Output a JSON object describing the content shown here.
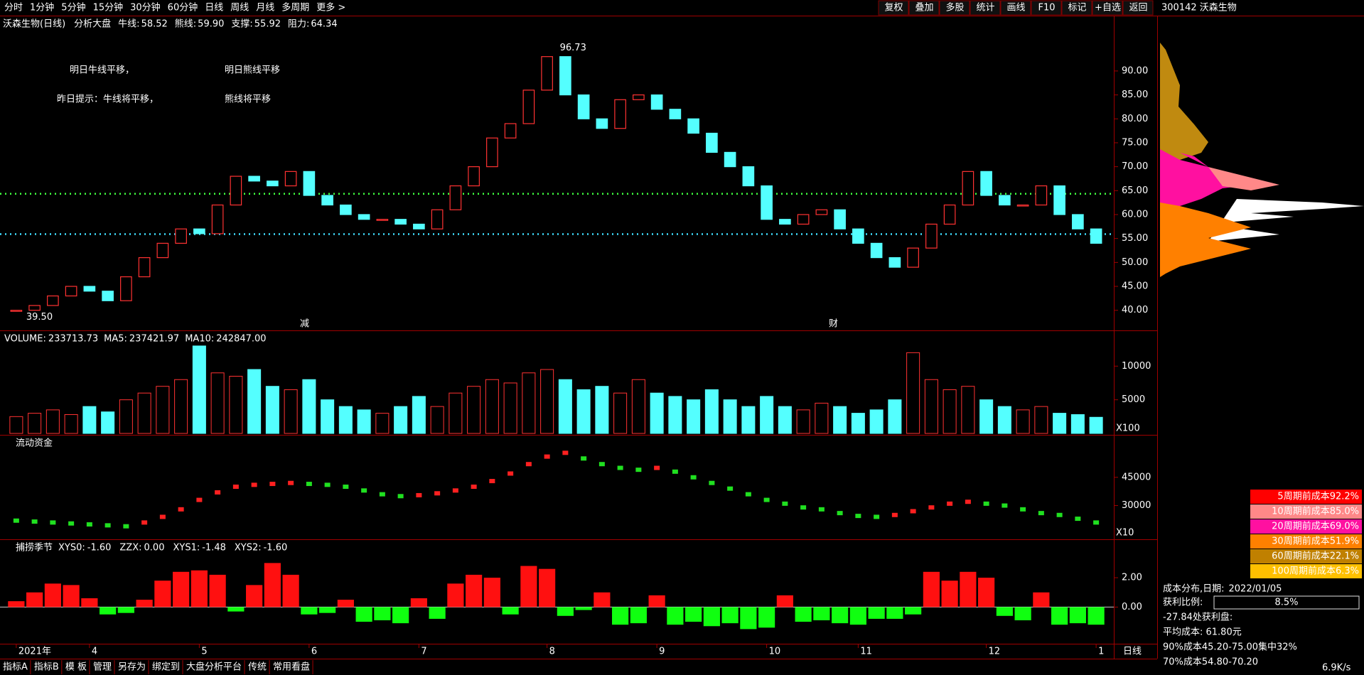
{
  "toolbar": {
    "periods": [
      "分时",
      "1分钟",
      "5分钟",
      "15分钟",
      "30分钟",
      "60分钟",
      "日线",
      "周线",
      "月线",
      "多周期",
      "更多 >"
    ],
    "actions": [
      "复权",
      "叠加",
      "多股",
      "统计",
      "画线",
      "F10",
      "标记",
      "+自选",
      "返回"
    ],
    "stock": "300142 沃森生物"
  },
  "header": {
    "name": "沃森生物(日线)",
    "analysis": "分析大盘",
    "bull_label": "牛线:",
    "bull": "58.52",
    "bear_label": "熊线:",
    "bear": "59.90",
    "support_label": "支撑:",
    "support": 55.92,
    "resistance_label": "阻力:",
    "resistance": 64.34
  },
  "price": {
    "annotations": [
      "明日牛线平移，",
      "明日熊线平移",
      "昨日提示：牛线将平移，",
      "熊线将平移"
    ],
    "high_label": "96.73",
    "low_label": "39.50",
    "markers": [
      "减",
      "财"
    ],
    "categories": [
      "2021年",
      null,
      null,
      null,
      "4",
      null,
      null,
      null,
      null,
      null,
      "5",
      null,
      null,
      null,
      null,
      null,
      "6",
      null,
      null,
      null,
      null,
      null,
      "7",
      null,
      null,
      null,
      null,
      null,
      null,
      "8",
      null,
      null,
      null,
      null,
      null,
      "9",
      null,
      null,
      null,
      null,
      null,
      "10",
      null,
      null,
      null,
      null,
      "11",
      null,
      null,
      null,
      null,
      null,
      null,
      "12",
      null,
      null,
      null,
      null,
      null,
      "1"
    ],
    "close": [
      40,
      41,
      43,
      45,
      44,
      42,
      47,
      51,
      54,
      57,
      56,
      62,
      68,
      67,
      66,
      69,
      64,
      62,
      60,
      59,
      59,
      58,
      57,
      61,
      66,
      70,
      76,
      79,
      86,
      93,
      85,
      80,
      78,
      84,
      85,
      82,
      80,
      77,
      73,
      70,
      66,
      59,
      58,
      60,
      61,
      57,
      54,
      51,
      49,
      53,
      58,
      62,
      69,
      64,
      62,
      62,
      66,
      60,
      57,
      54
    ],
    "ylim": [
      35.8,
      98
    ],
    "yticks": [
      {
        "value": 40,
        "label": "40.00"
      },
      {
        "value": 45,
        "label": "45.00"
      },
      {
        "value": 50,
        "label": "50.00"
      },
      {
        "value": 55,
        "label": "55.00"
      },
      {
        "value": 60,
        "label": "60.00"
      },
      {
        "value": 65,
        "label": "65.00"
      },
      {
        "value": 70,
        "label": "70.00"
      },
      {
        "value": 75,
        "label": "75.00"
      },
      {
        "value": 80,
        "label": "80.00"
      },
      {
        "value": 85,
        "label": "85.00"
      },
      {
        "value": 90,
        "label": "90.00"
      }
    ]
  },
  "volume": {
    "title": "VOLUME:",
    "value": "233713.73",
    "ma5_label": "MA5:",
    "ma5": "237421.97",
    "ma10_label": "MA10:",
    "ma10": "242847.00",
    "unit": "X100",
    "values": [
      2500,
      3000,
      3500,
      2800,
      4000,
      3200,
      5000,
      6000,
      7000,
      8000,
      13000,
      9000,
      8500,
      9500,
      7000,
      6500,
      8000,
      5000,
      4000,
      3500,
      3000,
      4000,
      5500,
      4000,
      6000,
      7000,
      8000,
      7500,
      9000,
      9500,
      8000,
      6500,
      7000,
      6000,
      8000,
      6000,
      5500,
      5000,
      6500,
      5000,
      4000,
      5500,
      4000,
      3500,
      4500,
      4000,
      3000,
      3500,
      5000,
      12000,
      8000,
      6500,
      7000,
      5000,
      4000,
      3500,
      4000,
      3000,
      2800,
      2400
    ],
    "ylim": [
      0,
      13200
    ],
    "yticks": [
      5000,
      10000
    ]
  },
  "flow": {
    "title": "流动资金",
    "unit": "X10",
    "values": [
      22000,
      21500,
      21000,
      20500,
      20000,
      19500,
      19000,
      21000,
      24000,
      28000,
      33000,
      37000,
      40000,
      41000,
      41500,
      42000,
      41500,
      41000,
      40000,
      38000,
      36000,
      35000,
      35500,
      36500,
      38000,
      40000,
      43000,
      47000,
      52000,
      56000,
      58000,
      55000,
      52000,
      50000,
      49000,
      50000,
      48000,
      45000,
      42000,
      39000,
      36000,
      33000,
      31000,
      29000,
      28000,
      26000,
      24500,
      24000,
      25000,
      27000,
      29000,
      31000,
      32000,
      31000,
      30000,
      28000,
      26000,
      25000,
      23000,
      21000
    ],
    "ylim": [
      13600,
      60000
    ],
    "yticks": [
      30000,
      45000
    ]
  },
  "osc": {
    "title": "捕捞季节",
    "fields": [
      [
        "XYS0:",
        "-1.60",
        "#ffffff"
      ],
      [
        "ZZX:",
        "0.00",
        "#ffffff"
      ],
      [
        "XYS1:",
        "-1.48",
        "#ffff00"
      ],
      [
        "XYS2:",
        "-1.60",
        "#ff40ff"
      ]
    ],
    "values": [
      0.4,
      1.0,
      1.6,
      1.5,
      0.6,
      -0.5,
      -0.4,
      0.5,
      1.8,
      2.4,
      2.5,
      2.2,
      -0.3,
      1.5,
      3.0,
      2.2,
      -0.5,
      -0.4,
      0.5,
      -1.0,
      -0.9,
      -1.1,
      0.6,
      -0.8,
      1.6,
      2.2,
      2.0,
      -0.5,
      2.8,
      2.6,
      -0.6,
      -0.2,
      1.0,
      -1.2,
      -1.1,
      0.8,
      -1.2,
      -1.0,
      -1.3,
      -1.1,
      -1.5,
      -1.4,
      0.8,
      -1.0,
      -0.9,
      -1.1,
      -1.2,
      -0.8,
      -0.8,
      -0.5,
      2.4,
      1.8,
      2.4,
      2.0,
      -0.6,
      -0.9,
      1.0,
      -1.2,
      -1.1,
      -1.2
    ],
    "ylim": [
      -2.4,
      3.6
    ],
    "yticks": [
      {
        "value": 0,
        "label": "0.00"
      },
      {
        "value": 2,
        "label": "2.00"
      }
    ]
  },
  "side": {
    "legend": [
      [
        "5周期前成本92.2%",
        "#ff0000"
      ],
      [
        "10周期前成本85.0%",
        "#ff8888"
      ],
      [
        "20周期前成本69.0%",
        "#ff10a0"
      ],
      [
        "30周期前成本51.9%",
        "#ff8000"
      ],
      [
        "60周期前成本22.1%",
        "#c08000"
      ],
      [
        "100周期前成本6.3%",
        "#ffc000"
      ]
    ],
    "date_label": "成本分布,日期:",
    "date": "2022/01/05",
    "profit_label": "获利比例:",
    "profit": "8.5%",
    "lines": [
      "-27.84处获利盘:",
      "平均成本: 61.80元",
      "90%成本45.20-75.00集中32%",
      "70%成本54.80-70.20"
    ]
  },
  "status": {
    "tabs": [
      "指标A",
      "指标B",
      "模 板",
      "管理",
      "另存为",
      "绑定到",
      "大盘分析平台",
      "传统",
      "常用看盘"
    ],
    "period": "日线",
    "speed": "6.9K/s"
  }
}
